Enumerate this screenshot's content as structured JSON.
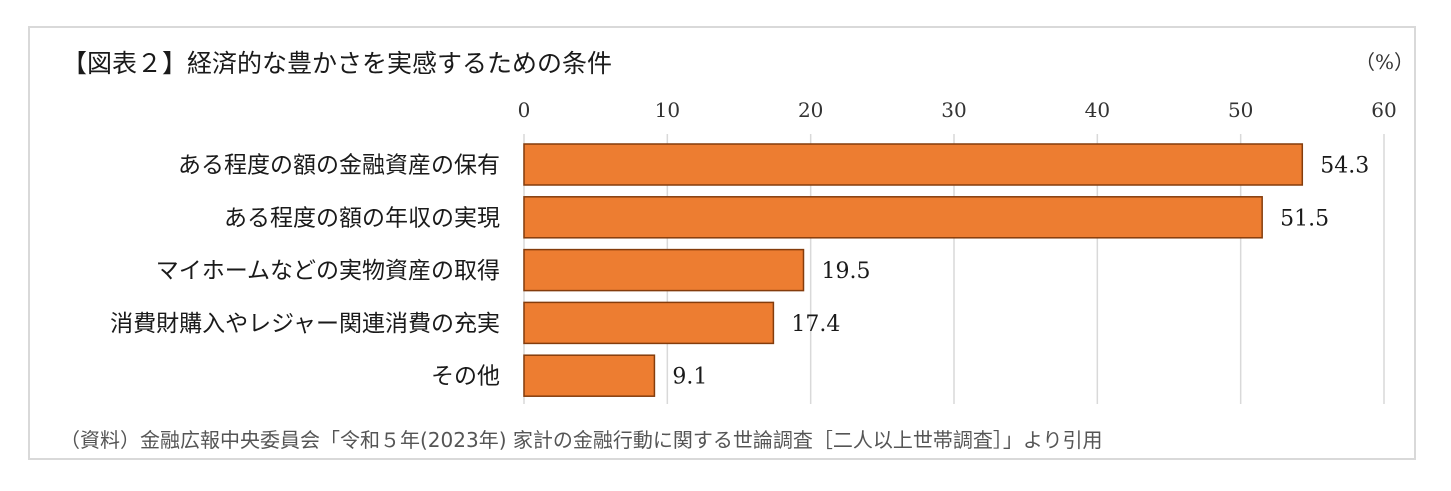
{
  "chart_data": {
    "type": "bar",
    "orientation": "horizontal",
    "title": "【図表２】経済的な豊かさを実感するための条件",
    "unit_label": "（%）",
    "categories": [
      "ある程度の額の金融資産の保有",
      "ある程度の額の年収の実現",
      "マイホームなどの実物資産の取得",
      "消費財購入やレジャー関連消費の充実",
      "その他"
    ],
    "values": [
      54.3,
      51.5,
      19.5,
      17.4,
      9.1
    ],
    "value_labels": [
      "54.3",
      "51.5",
      "19.5",
      "17.4",
      "9.1"
    ],
    "xlim": [
      0,
      60
    ],
    "xticks": [
      0,
      10,
      20,
      30,
      40,
      50,
      60
    ],
    "xaxis_position": "top",
    "grid": true,
    "bar_color": "#ED7D31",
    "bar_edge_color": "#843C0C",
    "source": "（資料）金融広報中央委員会「令和５年(2023年) 家計の金融行動に関する世論調査［二人以上世帯調査］」より引用"
  }
}
